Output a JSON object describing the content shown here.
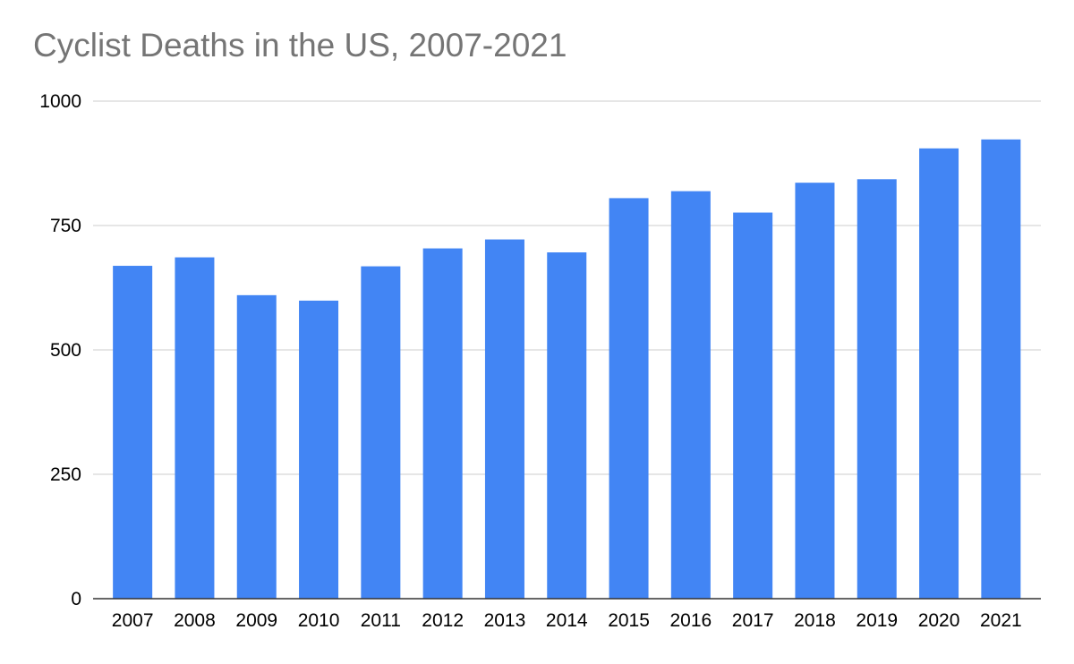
{
  "chart_data": {
    "type": "bar",
    "title": "Cyclist Deaths in the US, 2007-2021",
    "xlabel": "",
    "ylabel": "",
    "categories": [
      "2007",
      "2008",
      "2009",
      "2010",
      "2011",
      "2012",
      "2013",
      "2014",
      "2015",
      "2016",
      "2017",
      "2018",
      "2019",
      "2020",
      "2021"
    ],
    "values": [
      669,
      686,
      610,
      599,
      668,
      704,
      722,
      696,
      805,
      819,
      776,
      836,
      843,
      905,
      923
    ],
    "ylim": [
      0,
      1000
    ],
    "yticks": [
      0,
      250,
      500,
      750,
      1000
    ],
    "grid": true,
    "legend": "none",
    "bar_color": "#4285f4",
    "gridline_color": "#cccccc",
    "axis_color": "#333333"
  }
}
